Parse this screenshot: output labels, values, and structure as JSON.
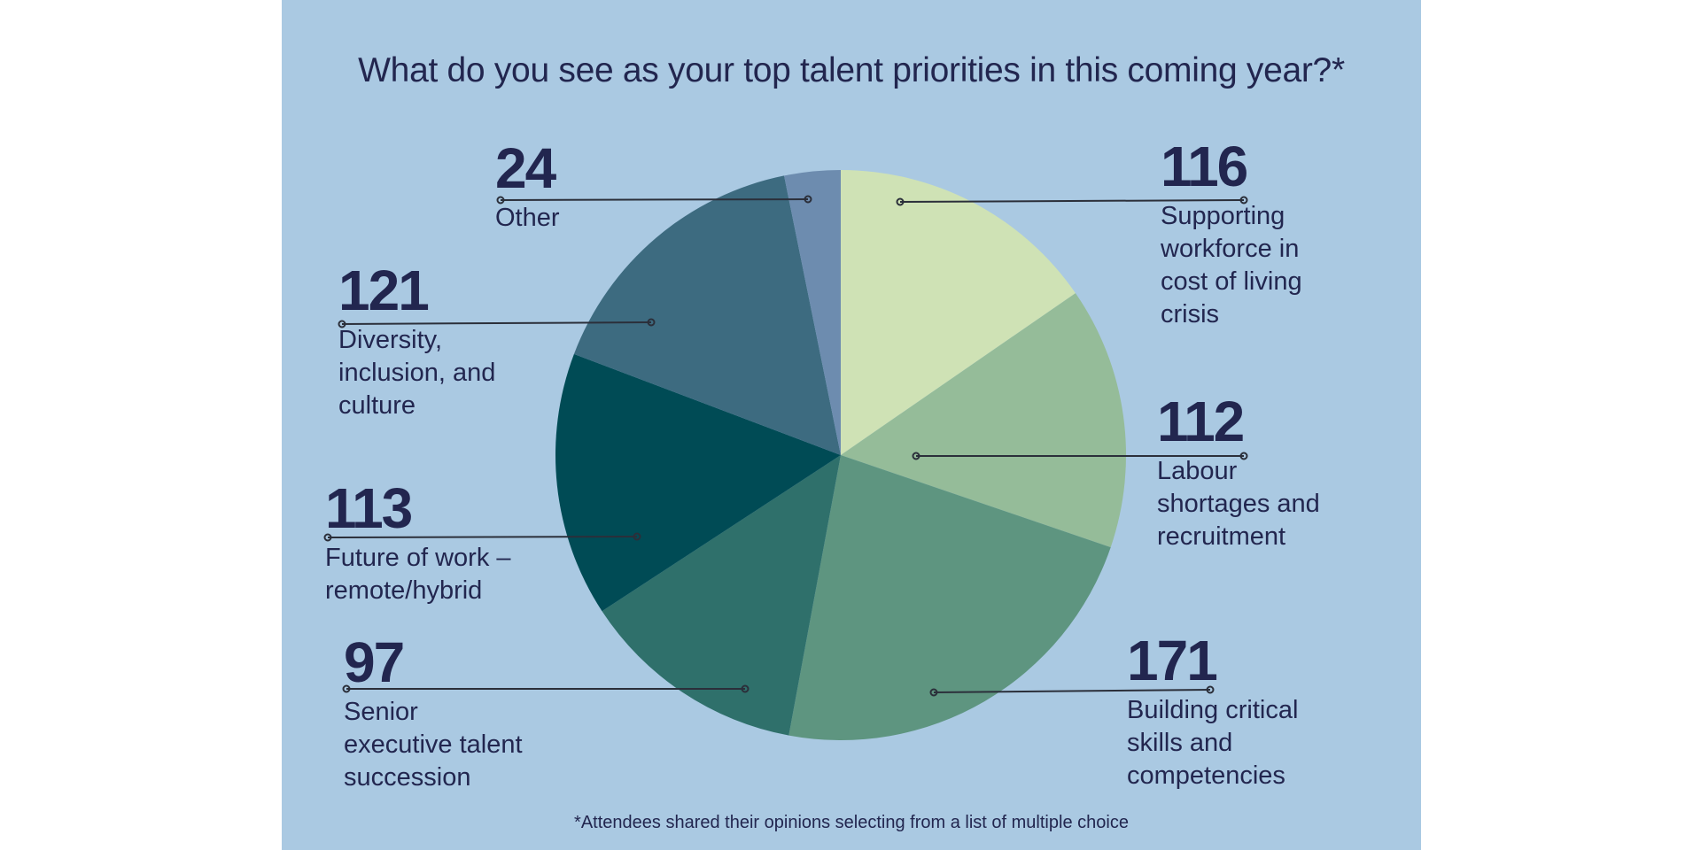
{
  "title": "What do you see as your top talent priorities in this coming year?*",
  "footnote": "*Attendees shared their opinions selecting from a list of multiple choice",
  "chart_data": {
    "type": "pie",
    "title": "What do you see as your top talent priorities in this coming year?*",
    "slices": [
      {
        "label": "Supporting workforce in cost of living crisis",
        "label_lines": [
          "Supporting",
          "workforce in",
          "cost of living",
          "crisis"
        ],
        "value": 116,
        "value_text": "116",
        "color": "#cfe2b5"
      },
      {
        "label": "Labour shortages and recruitment",
        "label_lines": [
          "Labour",
          "shortages and",
          "recruitment"
        ],
        "value": 112,
        "value_text": "112",
        "color": "#95bc99"
      },
      {
        "label": "Building critical skills and competencies",
        "label_lines": [
          "Building critical",
          "skills and",
          "competencies"
        ],
        "value": 171,
        "value_text": "171",
        "color": "#5e9580"
      },
      {
        "label": "Senior executive talent succession",
        "label_lines": [
          "Senior",
          "executive talent",
          "succession"
        ],
        "value": 97,
        "value_text": "97",
        "color": "#2f706b"
      },
      {
        "label": "Future of work – remote/hybrid",
        "label_lines": [
          "Future of work –",
          "remote/hybrid"
        ],
        "value": 113,
        "value_text": "113",
        "color": "#004b55"
      },
      {
        "label": "Diversity, inclusion, and culture",
        "label_lines": [
          "Diversity,",
          "inclusion, and",
          "culture"
        ],
        "value": 121,
        "value_text": "121",
        "color": "#3d6b80"
      },
      {
        "label": "Other",
        "label_lines": [
          "Other"
        ],
        "value": 24,
        "value_text": "24",
        "color": "#6d8caf"
      }
    ]
  }
}
